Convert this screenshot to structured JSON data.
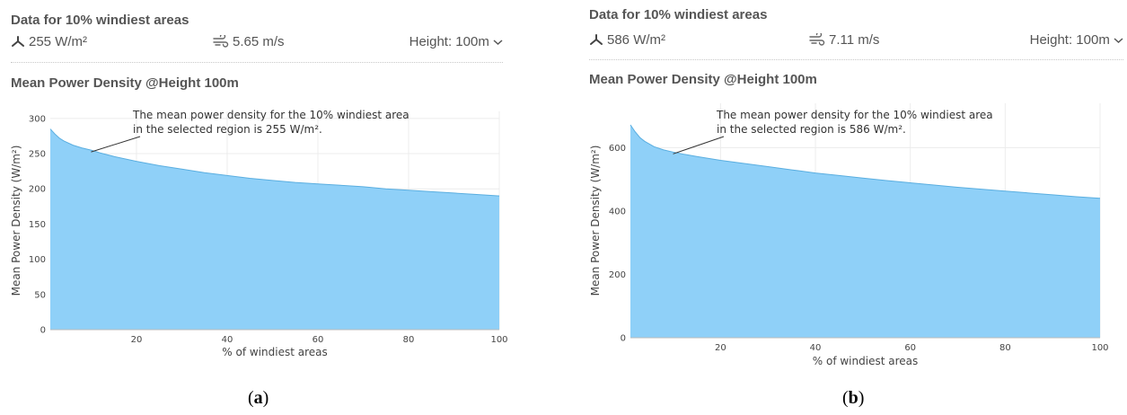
{
  "panels": [
    {
      "id": "a",
      "header_title": "Data for 10% windiest areas",
      "power_value": "255 W/m²",
      "speed_value": "5.65 m/s",
      "height_select": "Height: 100m",
      "chart_title": "Mean Power Density @Height 100m",
      "caption_open": "(",
      "caption_letter": "a",
      "caption_close": ")",
      "chart_data": {
        "type": "area",
        "title": "Mean Power Density @Height 100m",
        "xlabel": "% of windiest areas",
        "ylabel": "Mean Power Density (W/m²)",
        "xlim": [
          1,
          100
        ],
        "ylim": [
          0,
          310
        ],
        "xticks": [
          20,
          40,
          60,
          80,
          100
        ],
        "yticks": [
          0,
          50,
          100,
          150,
          200,
          250,
          300
        ],
        "grid": true,
        "color": "#8fd0f8",
        "annotation": [
          "The mean power density for the 10% windiest area",
          "in the selected region is 255 W/m²."
        ],
        "annotation_point": [
          10,
          255
        ],
        "x": [
          1,
          2,
          3,
          4,
          6,
          8,
          10,
          12,
          15,
          20,
          25,
          30,
          35,
          40,
          45,
          50,
          55,
          60,
          65,
          70,
          75,
          80,
          85,
          90,
          95,
          100
        ],
        "y": [
          285,
          278,
          272,
          268,
          262,
          258,
          255,
          251,
          246,
          239,
          233,
          228,
          223,
          219,
          215,
          212,
          209,
          207,
          205,
          203,
          200,
          198,
          196,
          194,
          192,
          190
        ]
      }
    },
    {
      "id": "b",
      "header_title": "Data for 10% windiest areas",
      "power_value": "586 W/m²",
      "speed_value": "7.11 m/s",
      "height_select": "Height: 100m",
      "chart_title": "Mean Power Density @Height 100m",
      "caption_open": "(",
      "caption_letter": "b",
      "caption_close": ")",
      "chart_data": {
        "type": "area",
        "title": "Mean Power Density @Height 100m",
        "xlabel": "% of windiest areas",
        "ylabel": "Mean Power Density (W/m²)",
        "xlim": [
          1,
          100
        ],
        "ylim": [
          0,
          740
        ],
        "xticks": [
          20,
          40,
          60,
          80,
          100
        ],
        "yticks": [
          0,
          200,
          400,
          600
        ],
        "grid": true,
        "color": "#8fd0f8",
        "annotation": [
          "The mean power density for the 10% windiest area",
          "in the selected region is 586 W/m²."
        ],
        "annotation_point": [
          10,
          586
        ],
        "x": [
          1,
          2,
          3,
          4,
          6,
          8,
          10,
          12,
          15,
          20,
          25,
          30,
          35,
          40,
          45,
          50,
          55,
          60,
          65,
          70,
          75,
          80,
          85,
          90,
          95,
          100
        ],
        "y": [
          672,
          650,
          632,
          620,
          603,
          593,
          586,
          580,
          572,
          560,
          550,
          540,
          530,
          520,
          512,
          504,
          496,
          489,
          482,
          475,
          469,
          463,
          457,
          451,
          445,
          440
        ]
      }
    }
  ]
}
